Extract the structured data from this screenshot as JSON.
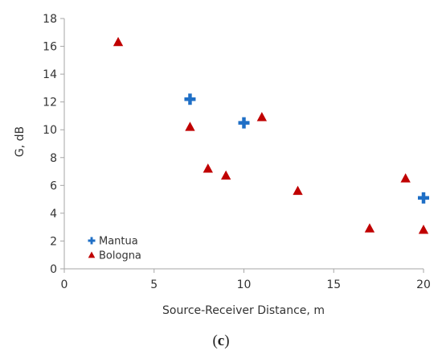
{
  "caption": {
    "open": "(",
    "letter": "c",
    "close": ")"
  },
  "chart_data": {
    "type": "scatter",
    "title": "",
    "xlabel": "Source-Receiver Distance, m",
    "ylabel": "G, dB",
    "xlim": [
      0,
      20
    ],
    "ylim": [
      0,
      18
    ],
    "xticks": [
      0,
      5,
      10,
      15,
      20
    ],
    "yticks": [
      0,
      2,
      4,
      6,
      8,
      10,
      12,
      14,
      16,
      18
    ],
    "grid": false,
    "legend_position": "bottom-left",
    "series": [
      {
        "name": "Mantua",
        "marker": "plus",
        "color": "#1f6fc6",
        "points": [
          {
            "x": 7,
            "y": 12.2
          },
          {
            "x": 10,
            "y": 10.5
          },
          {
            "x": 20,
            "y": 5.1
          }
        ]
      },
      {
        "name": "Bologna",
        "marker": "triangle",
        "color": "#c00000",
        "points": [
          {
            "x": 3,
            "y": 16.3
          },
          {
            "x": 7,
            "y": 10.2
          },
          {
            "x": 8,
            "y": 7.2
          },
          {
            "x": 9,
            "y": 6.7
          },
          {
            "x": 11,
            "y": 10.9
          },
          {
            "x": 13,
            "y": 5.6
          },
          {
            "x": 17,
            "y": 2.9
          },
          {
            "x": 19,
            "y": 6.5
          },
          {
            "x": 20,
            "y": 2.8
          }
        ]
      }
    ]
  }
}
